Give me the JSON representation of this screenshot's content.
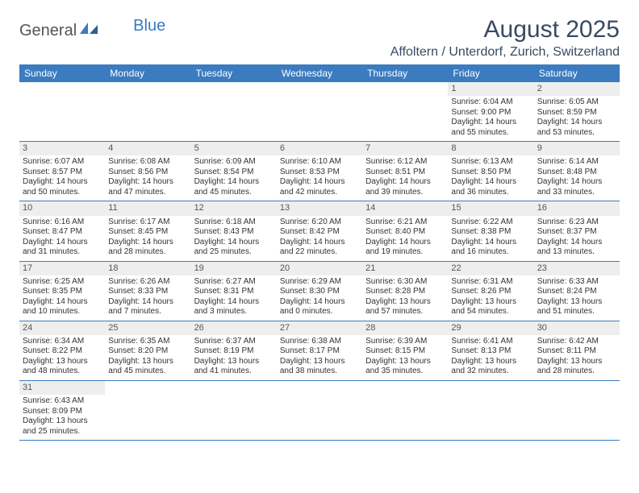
{
  "logo": {
    "text1": "General",
    "text2": "Blue"
  },
  "title": "August 2025",
  "location": "Affoltern / Unterdorf, Zurich, Switzerland",
  "colors": {
    "header_bg": "#3b7bbf",
    "header_text": "#ffffff",
    "daynum_bg": "#eeeeee",
    "border": "#3b7bbf",
    "title_color": "#374a63",
    "body_text": "#333333",
    "background": "#ffffff"
  },
  "typography": {
    "title_fontsize": 30,
    "location_fontsize": 16,
    "dayheader_fontsize": 12,
    "daynum_fontsize": 11,
    "body_fontsize": 10
  },
  "day_headers": [
    "Sunday",
    "Monday",
    "Tuesday",
    "Wednesday",
    "Thursday",
    "Friday",
    "Saturday"
  ],
  "weeks": [
    [
      null,
      null,
      null,
      null,
      null,
      {
        "n": "1",
        "sunrise": "6:04 AM",
        "sunset": "9:00 PM",
        "dl_h": "14",
        "dl_m": "55"
      },
      {
        "n": "2",
        "sunrise": "6:05 AM",
        "sunset": "8:59 PM",
        "dl_h": "14",
        "dl_m": "53"
      }
    ],
    [
      {
        "n": "3",
        "sunrise": "6:07 AM",
        "sunset": "8:57 PM",
        "dl_h": "14",
        "dl_m": "50"
      },
      {
        "n": "4",
        "sunrise": "6:08 AM",
        "sunset": "8:56 PM",
        "dl_h": "14",
        "dl_m": "47"
      },
      {
        "n": "5",
        "sunrise": "6:09 AM",
        "sunset": "8:54 PM",
        "dl_h": "14",
        "dl_m": "45"
      },
      {
        "n": "6",
        "sunrise": "6:10 AM",
        "sunset": "8:53 PM",
        "dl_h": "14",
        "dl_m": "42"
      },
      {
        "n": "7",
        "sunrise": "6:12 AM",
        "sunset": "8:51 PM",
        "dl_h": "14",
        "dl_m": "39"
      },
      {
        "n": "8",
        "sunrise": "6:13 AM",
        "sunset": "8:50 PM",
        "dl_h": "14",
        "dl_m": "36"
      },
      {
        "n": "9",
        "sunrise": "6:14 AM",
        "sunset": "8:48 PM",
        "dl_h": "14",
        "dl_m": "33"
      }
    ],
    [
      {
        "n": "10",
        "sunrise": "6:16 AM",
        "sunset": "8:47 PM",
        "dl_h": "14",
        "dl_m": "31"
      },
      {
        "n": "11",
        "sunrise": "6:17 AM",
        "sunset": "8:45 PM",
        "dl_h": "14",
        "dl_m": "28"
      },
      {
        "n": "12",
        "sunrise": "6:18 AM",
        "sunset": "8:43 PM",
        "dl_h": "14",
        "dl_m": "25"
      },
      {
        "n": "13",
        "sunrise": "6:20 AM",
        "sunset": "8:42 PM",
        "dl_h": "14",
        "dl_m": "22"
      },
      {
        "n": "14",
        "sunrise": "6:21 AM",
        "sunset": "8:40 PM",
        "dl_h": "14",
        "dl_m": "19"
      },
      {
        "n": "15",
        "sunrise": "6:22 AM",
        "sunset": "8:38 PM",
        "dl_h": "14",
        "dl_m": "16"
      },
      {
        "n": "16",
        "sunrise": "6:23 AM",
        "sunset": "8:37 PM",
        "dl_h": "14",
        "dl_m": "13"
      }
    ],
    [
      {
        "n": "17",
        "sunrise": "6:25 AM",
        "sunset": "8:35 PM",
        "dl_h": "14",
        "dl_m": "10"
      },
      {
        "n": "18",
        "sunrise": "6:26 AM",
        "sunset": "8:33 PM",
        "dl_h": "14",
        "dl_m": "7"
      },
      {
        "n": "19",
        "sunrise": "6:27 AM",
        "sunset": "8:31 PM",
        "dl_h": "14",
        "dl_m": "3"
      },
      {
        "n": "20",
        "sunrise": "6:29 AM",
        "sunset": "8:30 PM",
        "dl_h": "14",
        "dl_m": "0"
      },
      {
        "n": "21",
        "sunrise": "6:30 AM",
        "sunset": "8:28 PM",
        "dl_h": "13",
        "dl_m": "57"
      },
      {
        "n": "22",
        "sunrise": "6:31 AM",
        "sunset": "8:26 PM",
        "dl_h": "13",
        "dl_m": "54"
      },
      {
        "n": "23",
        "sunrise": "6:33 AM",
        "sunset": "8:24 PM",
        "dl_h": "13",
        "dl_m": "51"
      }
    ],
    [
      {
        "n": "24",
        "sunrise": "6:34 AM",
        "sunset": "8:22 PM",
        "dl_h": "13",
        "dl_m": "48"
      },
      {
        "n": "25",
        "sunrise": "6:35 AM",
        "sunset": "8:20 PM",
        "dl_h": "13",
        "dl_m": "45"
      },
      {
        "n": "26",
        "sunrise": "6:37 AM",
        "sunset": "8:19 PM",
        "dl_h": "13",
        "dl_m": "41"
      },
      {
        "n": "27",
        "sunrise": "6:38 AM",
        "sunset": "8:17 PM",
        "dl_h": "13",
        "dl_m": "38"
      },
      {
        "n": "28",
        "sunrise": "6:39 AM",
        "sunset": "8:15 PM",
        "dl_h": "13",
        "dl_m": "35"
      },
      {
        "n": "29",
        "sunrise": "6:41 AM",
        "sunset": "8:13 PM",
        "dl_h": "13",
        "dl_m": "32"
      },
      {
        "n": "30",
        "sunrise": "6:42 AM",
        "sunset": "8:11 PM",
        "dl_h": "13",
        "dl_m": "28"
      }
    ],
    [
      {
        "n": "31",
        "sunrise": "6:43 AM",
        "sunset": "8:09 PM",
        "dl_h": "13",
        "dl_m": "25"
      },
      null,
      null,
      null,
      null,
      null,
      null
    ]
  ],
  "labels": {
    "sunrise": "Sunrise:",
    "sunset": "Sunset:",
    "daylight_prefix": "Daylight:",
    "hours_word": "hours",
    "and_word": "and",
    "minutes_word": "minutes."
  }
}
